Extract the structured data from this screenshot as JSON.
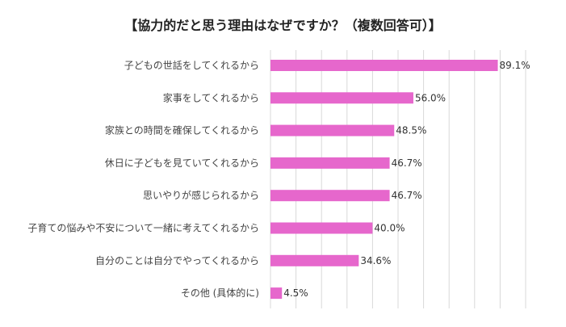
{
  "chart_data": {
    "type": "bar",
    "orientation": "horizontal",
    "title": "【協力的だと思う理由はなぜですか？（複数回答可）】",
    "categories": [
      "子どもの世話をしてくれるから",
      "家事をしてくれるから",
      "家族との時間を確保してくれるから",
      "休日に子どもを見ていてくれるから",
      "思いやりが感じられるから",
      "子育ての悩みや不安について一緒に考えてくれるから",
      "自分のことは自分でやってくれるから",
      "その他 (具体的に)"
    ],
    "values": [
      89.1,
      56.0,
      48.5,
      46.7,
      46.7,
      40.0,
      34.6,
      4.5
    ],
    "value_labels": [
      "89.1%",
      "56.0%",
      "48.5%",
      "46.7%",
      "46.7%",
      "40.0%",
      "34.6%",
      "4.5%"
    ],
    "unit": "%",
    "xlim": [
      0,
      100
    ],
    "grid": true,
    "bar_color": "#e667cc",
    "grid_color": "#d9d9d9",
    "xlabel": "",
    "ylabel": ""
  }
}
